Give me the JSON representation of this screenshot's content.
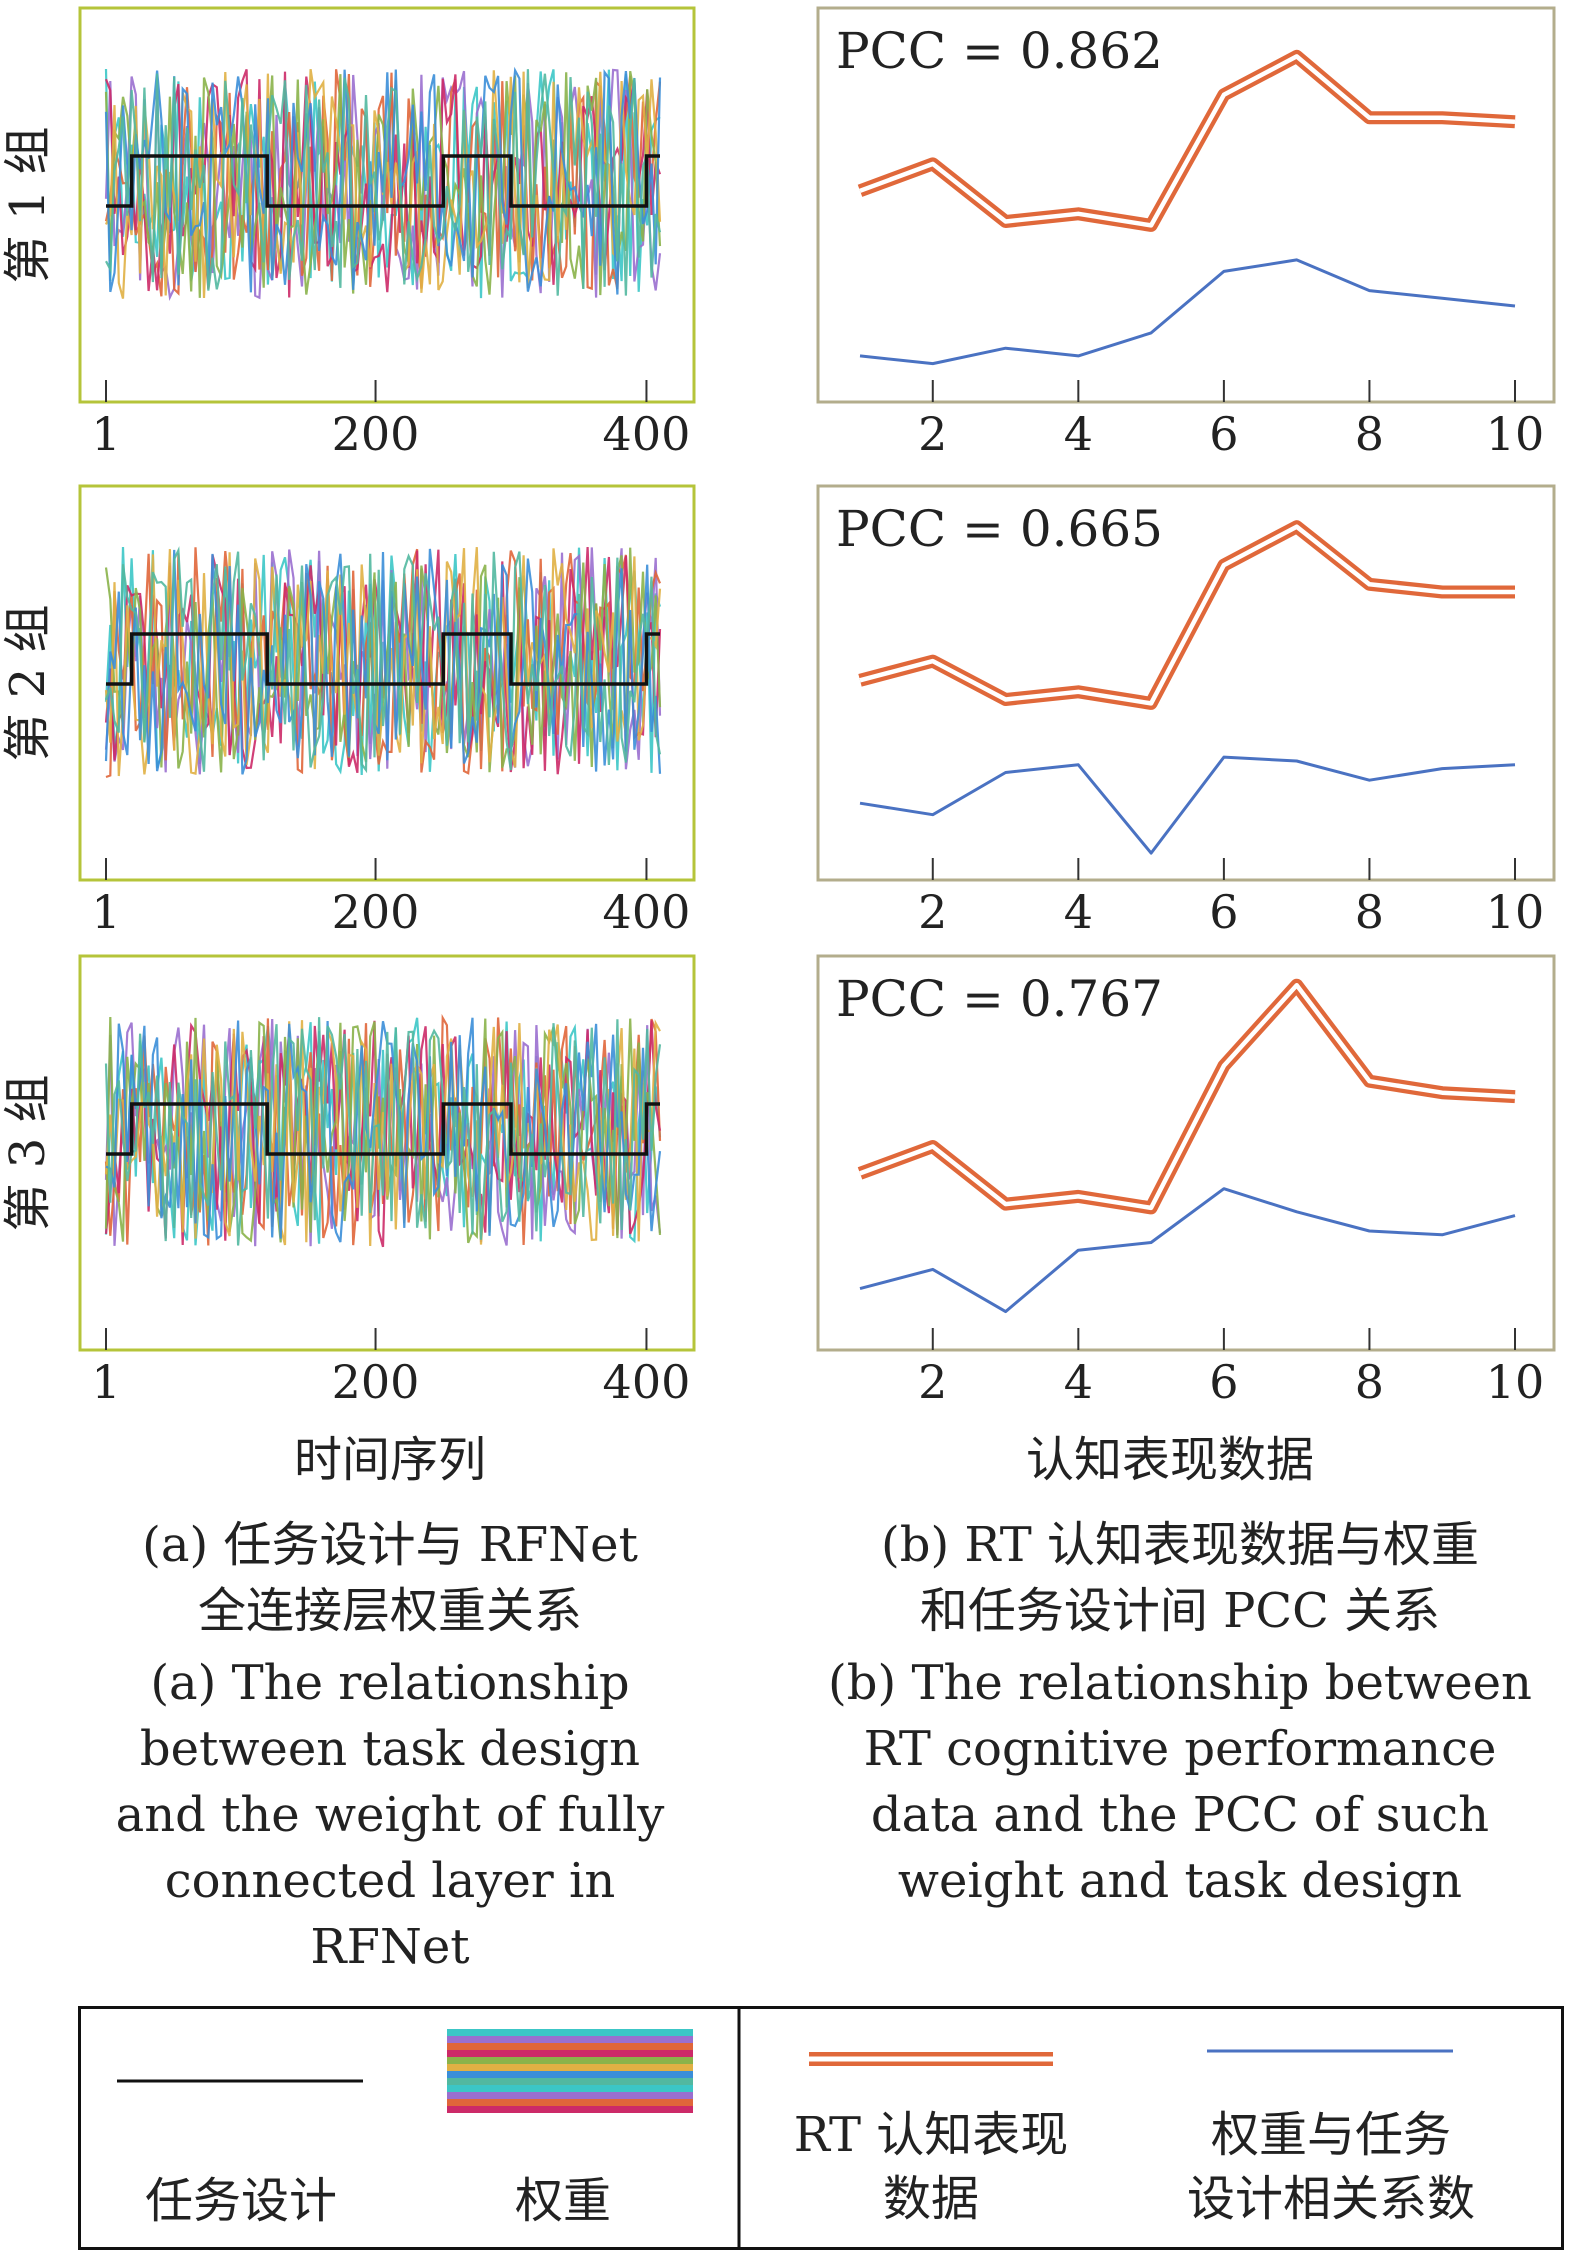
{
  "left_panel": {
    "x_ticks": [
      "1",
      "200",
      "400"
    ],
    "row_labels": [
      "第 1 组",
      "第 2 组",
      "第 3 组"
    ],
    "xlabel": "时间序列"
  },
  "right_panel": {
    "x_ticks": [
      "2",
      "4",
      "6",
      "8",
      "10"
    ],
    "xlabel": "认知表现数据"
  },
  "captions": {
    "a_cn": [
      "(a)  任务设计与 RFNet",
      "全连接层权重关系"
    ],
    "a_en": [
      "(a) The relationship",
      "between task design",
      "and the weight of fully",
      "connected layer in",
      "RFNet"
    ],
    "b_cn": [
      "(b) RT 认知表现数据与权重",
      "和任务设计间 PCC 关系"
    ],
    "b_en": [
      "(b) The relationship between",
      "RT cognitive performance",
      "data and the PCC of such",
      "weight and task design"
    ]
  },
  "legend": {
    "task_design": "任务设计",
    "weights": "权重",
    "rt_line1": "RT 认知表现",
    "rt_line2": "数据",
    "corr_line1": "权重与任务",
    "corr_line2": "设计相关系数"
  },
  "colors": {
    "left_frame": "#b5c43a",
    "right_frame": "#b3ad8c",
    "task_design": "#111111",
    "rt_performance": "#e0683a",
    "correlation": "#4a72c2",
    "weight_palette": [
      "#3cc6c6",
      "#9a6fcf",
      "#e0663a",
      "#cc2a68",
      "#8ab34a",
      "#e0b044",
      "#3b8ed8",
      "#52b8a0"
    ]
  },
  "chart_data": [
    {
      "type": "line",
      "group": "第 1 组",
      "x_range": [
        1,
        410
      ],
      "series": [
        {
          "name": "任务设计",
          "x": [
            1,
            20,
            20,
            120,
            120,
            250,
            250,
            300,
            300,
            400,
            400,
            410
          ],
          "values": [
            0,
            0,
            1,
            1,
            0,
            0,
            1,
            1,
            0,
            0,
            1,
            1
          ]
        },
        {
          "name": "权重",
          "values": []
        }
      ]
    },
    {
      "type": "line",
      "group": "第 2 组",
      "x_range": [
        1,
        410
      ],
      "series": [
        {
          "name": "任务设计",
          "x": [
            1,
            20,
            20,
            120,
            120,
            250,
            250,
            300,
            300,
            400,
            400,
            410
          ],
          "values": [
            0,
            0,
            1,
            1,
            0,
            0,
            1,
            1,
            0,
            0,
            1,
            1
          ]
        },
        {
          "name": "权重",
          "values": []
        }
      ]
    },
    {
      "type": "line",
      "group": "第 3 组",
      "x_range": [
        1,
        410
      ],
      "series": [
        {
          "name": "任务设计",
          "x": [
            1,
            20,
            20,
            120,
            120,
            250,
            250,
            300,
            300,
            400,
            400,
            410
          ],
          "values": [
            0,
            0,
            1,
            1,
            0,
            0,
            1,
            1,
            0,
            0,
            1,
            1
          ]
        },
        {
          "name": "权重",
          "values": []
        }
      ]
    },
    {
      "type": "line",
      "group": "第 1 组",
      "annotation": "PCC = 0.862",
      "x": [
        1,
        2,
        3,
        4,
        5,
        6,
        7,
        8,
        9,
        10
      ],
      "series": [
        {
          "name": "RT 认知表现数据",
          "values": [
            0.55,
            0.62,
            0.47,
            0.49,
            0.46,
            0.8,
            0.9,
            0.74,
            0.74,
            0.73
          ]
        },
        {
          "name": "权重与任务设计相关系数",
          "values": [
            0.12,
            0.1,
            0.14,
            0.12,
            0.18,
            0.34,
            0.37,
            0.29,
            0.27,
            0.25
          ]
        }
      ]
    },
    {
      "type": "line",
      "group": "第 2 组",
      "annotation": "PCC = 0.665",
      "x": [
        1,
        2,
        3,
        4,
        5,
        6,
        7,
        8,
        9,
        10
      ],
      "series": [
        {
          "name": "RT 认知表现数据",
          "values": [
            0.52,
            0.57,
            0.47,
            0.49,
            0.46,
            0.82,
            0.92,
            0.77,
            0.75,
            0.75
          ]
        },
        {
          "name": "权重与任务设计相关系数",
          "values": [
            0.2,
            0.17,
            0.28,
            0.3,
            0.07,
            0.32,
            0.31,
            0.26,
            0.29,
            0.3
          ]
        }
      ]
    },
    {
      "type": "line",
      "group": "第 3 组",
      "annotation": "PCC = 0.767",
      "x": [
        1,
        2,
        3,
        4,
        5,
        6,
        7,
        8,
        9,
        10
      ],
      "series": [
        {
          "name": "RT 认知表现数据",
          "values": [
            0.46,
            0.53,
            0.38,
            0.4,
            0.37,
            0.74,
            0.95,
            0.7,
            0.67,
            0.66
          ]
        },
        {
          "name": "权重与任务设计相关系数",
          "values": [
            0.16,
            0.21,
            0.1,
            0.26,
            0.28,
            0.42,
            0.36,
            0.31,
            0.3,
            0.35
          ]
        }
      ]
    }
  ]
}
